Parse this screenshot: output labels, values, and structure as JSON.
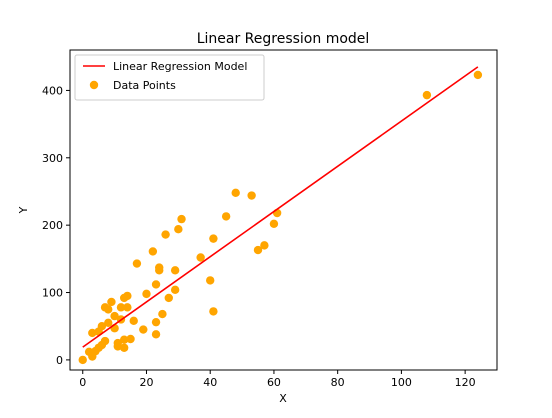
{
  "chart_data": {
    "type": "scatter",
    "title": "Linear Regression model",
    "xlabel": "X",
    "ylabel": "Y",
    "xlim": [
      -4,
      130
    ],
    "ylim": [
      -15,
      460
    ],
    "xticks": [
      0,
      20,
      40,
      60,
      80,
      100,
      120
    ],
    "yticks": [
      0,
      100,
      200,
      300,
      400
    ],
    "grid": false,
    "legend": {
      "location": "upper-left",
      "entries": [
        {
          "label": "Linear Regression Model",
          "kind": "line",
          "color": "#ff0000"
        },
        {
          "label": "Data Points",
          "kind": "marker",
          "color": "#ffa500"
        }
      ]
    },
    "series": [
      {
        "name": "Linear Regression Model",
        "kind": "line",
        "color": "#ff0000",
        "x": [
          0,
          124
        ],
        "y": [
          19,
          435
        ]
      },
      {
        "name": "Data Points",
        "kind": "scatter",
        "color": "#ffa500",
        "x": [
          0,
          2,
          3,
          3,
          4,
          5,
          5,
          6,
          6,
          7,
          7,
          8,
          8,
          9,
          10,
          10,
          11,
          11,
          12,
          12,
          13,
          13,
          13,
          14,
          14,
          15,
          16,
          17,
          19,
          20,
          22,
          23,
          23,
          23,
          24,
          24,
          25,
          26,
          27,
          29,
          29,
          30,
          31,
          37,
          40,
          41,
          41,
          45,
          48,
          53,
          55,
          57,
          60,
          61,
          108,
          124
        ],
        "y": [
          0,
          12,
          40,
          5,
          13,
          18,
          42,
          22,
          50,
          28,
          78,
          55,
          75,
          86,
          47,
          65,
          25,
          20,
          60,
          78,
          92,
          18,
          30,
          95,
          78,
          31,
          58,
          143,
          45,
          98,
          161,
          38,
          56,
          112,
          133,
          137,
          68,
          186,
          92,
          104,
          133,
          194,
          209,
          152,
          118,
          180,
          72,
          213,
          248,
          244,
          163,
          170,
          202,
          218,
          393,
          423
        ]
      }
    ]
  }
}
